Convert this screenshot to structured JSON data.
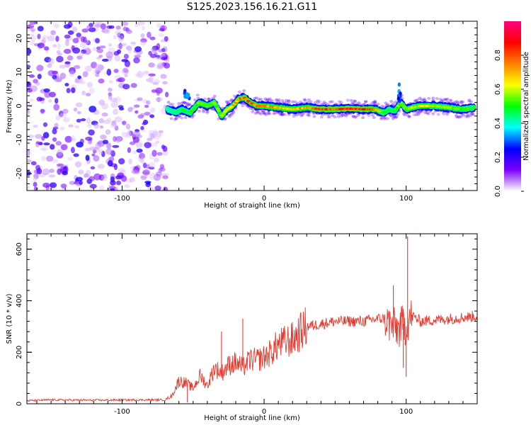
{
  "figure": {
    "title": "S125.2023.156.16.21.G11"
  },
  "chart_data": [
    {
      "type": "heatmap",
      "xlabel": "Height of straight line (km)",
      "ylabel": "Frequency (Hz)",
      "xlim": [
        -167,
        150
      ],
      "ylim": [
        -25,
        25
      ],
      "x_ticks": [
        -100,
        0,
        100
      ],
      "y_ticks": [
        -20,
        -10,
        0,
        10,
        20
      ],
      "colorbar": {
        "label": "Normalized spectral amplitude",
        "range": [
          0,
          1
        ],
        "ticks": [
          "0.0",
          "0.2",
          "0.4",
          "0.6",
          "0.8"
        ],
        "tick_values": [
          0.0,
          0.2,
          0.4,
          0.6,
          0.8
        ],
        "colormap": [
          "#ffffff",
          "#7b00ff",
          "#0000ff",
          "#00ffff",
          "#00ff00",
          "#ffff00",
          "#ff7f00",
          "#ff0000",
          "#ff0080"
        ]
      },
      "noise_region_x": [
        -167,
        -68
      ],
      "ridge": {
        "x": [
          -68,
          -62,
          -58,
          -52,
          -46,
          -40,
          -35,
          -30,
          -26,
          -22,
          -18,
          -14,
          -10,
          -5,
          0,
          10,
          20,
          30,
          40,
          50,
          60,
          70,
          78,
          84,
          88,
          92,
          96,
          100,
          104,
          110,
          120,
          130,
          140,
          148
        ],
        "freq": [
          -1,
          -2,
          -1,
          -2,
          1,
          0,
          1,
          -3,
          -1,
          0,
          2,
          2.5,
          1,
          0,
          0,
          -0.5,
          -1,
          -0.5,
          -1,
          -1,
          -0.8,
          -1,
          -1,
          -2,
          -1,
          -1.5,
          1,
          -1,
          -0.5,
          0,
          0,
          -0.5,
          -1,
          -0.5
        ],
        "amplitude": [
          0.35,
          0.4,
          0.45,
          0.5,
          0.55,
          0.6,
          0.55,
          0.6,
          0.65,
          0.7,
          0.75,
          0.85,
          0.8,
          0.8,
          0.8,
          0.75,
          0.7,
          0.75,
          0.9,
          0.85,
          0.9,
          0.9,
          0.85,
          0.5,
          0.45,
          0.5,
          0.6,
          0.55,
          0.6,
          0.65,
          0.6,
          0.6,
          0.55,
          0.5
        ]
      },
      "features": [
        {
          "name": "spike",
          "x": [
            94,
            96
          ],
          "freq": [
            1,
            7
          ]
        },
        {
          "name": "spike",
          "x": [
            -56,
            -52
          ],
          "freq": [
            2,
            6
          ]
        }
      ]
    },
    {
      "type": "line",
      "xlabel": "Height of straight line (km)",
      "ylabel": "SNR (10 * v/v)",
      "xlim": [
        -167,
        150
      ],
      "ylim": [
        0,
        660
      ],
      "x_ticks": [
        -100,
        0,
        100
      ],
      "y_ticks": [
        0,
        200,
        400,
        600
      ],
      "color": "#e8392f",
      "series": [
        {
          "x": [
            -167,
            -150,
            -130,
            -110,
            -90,
            -70,
            -65,
            -60,
            -55,
            -50,
            -45,
            -40,
            -35,
            -30,
            -25,
            -20,
            -15,
            -10,
            -5,
            0,
            5,
            10,
            20,
            30,
            40,
            50,
            60,
            70,
            80,
            85,
            90,
            95,
            98,
            100,
            102,
            105,
            110,
            120,
            130,
            140,
            150
          ],
          "y": [
            12,
            15,
            14,
            14,
            15,
            15,
            30,
            90,
            80,
            60,
            110,
            70,
            140,
            120,
            150,
            160,
            140,
            170,
            170,
            180,
            200,
            230,
            250,
            300,
            310,
            320,
            320,
            320,
            330,
            330,
            300,
            290,
            310,
            300,
            330,
            340,
            320,
            325,
            330,
            335,
            340
          ]
        }
      ],
      "peaks": [
        {
          "x": 101,
          "y": 650
        },
        {
          "x": 91,
          "y": 460
        },
        {
          "x": -15,
          "y": 330
        },
        {
          "x": -30,
          "y": 280
        }
      ],
      "dips": [
        {
          "x": 100,
          "y": 105
        },
        {
          "x": 98,
          "y": 140
        },
        {
          "x": -54,
          "y": 5
        }
      ]
    }
  ]
}
